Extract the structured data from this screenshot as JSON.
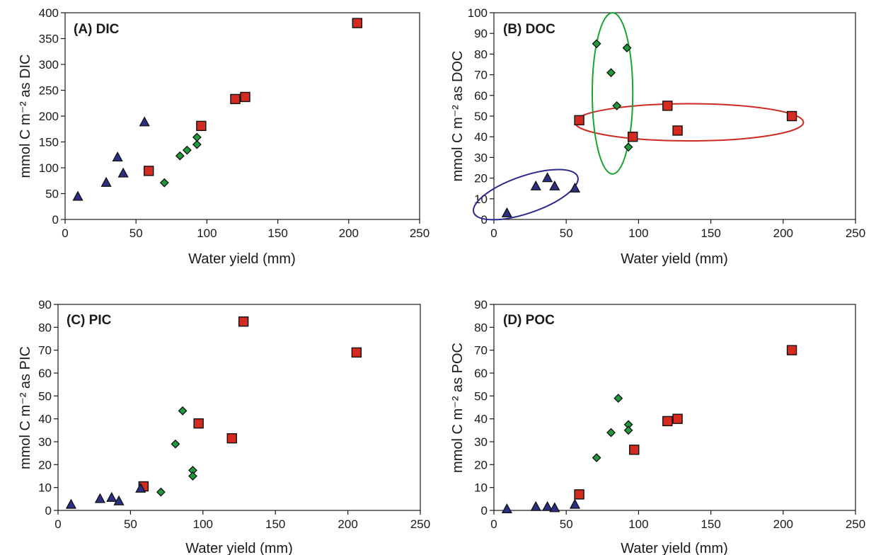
{
  "colors": {
    "wet": "#d42a1f",
    "intermediate": "#1d9a3a",
    "dry": "#2b2f85",
    "ellipse_red": "#cc2a1f",
    "ellipse_green": "#19a236",
    "ellipse_blue": "#2c2a8c"
  },
  "chart_data": [
    {
      "type": "scatter",
      "panel_label": "(A) DIC",
      "xlabel": "Water yield (mm)",
      "ylabel": "mmol C m⁻² as DIC",
      "xlim": [
        0,
        250
      ],
      "ylim": [
        0,
        400
      ],
      "xticks": [
        0,
        50,
        100,
        150,
        200,
        250
      ],
      "yticks": [
        0,
        50,
        100,
        150,
        200,
        250,
        300,
        350,
        400
      ],
      "grid": false,
      "series": [
        {
          "marker": "square",
          "color": "wet",
          "points": [
            [
              59,
              94
            ],
            [
              96,
              181
            ],
            [
              120,
              233
            ],
            [
              127,
              237
            ],
            [
              206,
              380
            ]
          ]
        },
        {
          "marker": "diamond",
          "color": "intermediate",
          "points": [
            [
              70,
              71
            ],
            [
              81,
              123
            ],
            [
              86,
              134
            ],
            [
              93,
              145
            ],
            [
              93,
              159
            ]
          ]
        },
        {
          "marker": "triangle",
          "color": "dry",
          "points": [
            [
              9,
              44
            ],
            [
              29,
              71
            ],
            [
              37,
              120
            ],
            [
              41,
              89
            ],
            [
              56,
              188
            ]
          ]
        }
      ]
    },
    {
      "type": "scatter",
      "panel_label": "(B) DOC",
      "xlabel": "Water yield (mm)",
      "ylabel": "mmol C m⁻² as DOC",
      "xlim": [
        0,
        250
      ],
      "ylim": [
        0,
        100
      ],
      "xticks": [
        0,
        50,
        100,
        150,
        200,
        250
      ],
      "yticks": [
        0,
        10,
        20,
        30,
        40,
        50,
        60,
        70,
        80,
        90,
        100
      ],
      "grid": false,
      "series": [
        {
          "marker": "square",
          "color": "wet",
          "points": [
            [
              59,
              48
            ],
            [
              96,
              40
            ],
            [
              120,
              55
            ],
            [
              127,
              43
            ],
            [
              206,
              50
            ]
          ]
        },
        {
          "marker": "diamond",
          "color": "intermediate",
          "points": [
            [
              71,
              85
            ],
            [
              81,
              71
            ],
            [
              85,
              55
            ],
            [
              92,
              83
            ],
            [
              93,
              35
            ]
          ]
        },
        {
          "marker": "triangle",
          "color": "dry",
          "points": [
            [
              9,
              3
            ],
            [
              29,
              16
            ],
            [
              37,
              20
            ],
            [
              42,
              16
            ],
            [
              56,
              15
            ]
          ]
        }
      ],
      "ellipses": [
        {
          "color": "ellipse_red",
          "cx": 135,
          "cy": 47,
          "rx": 79,
          "ry": 9
        },
        {
          "color": "ellipse_green",
          "cx": 82,
          "cy": 61,
          "rx": 14,
          "ry": 39
        },
        {
          "color": "ellipse_blue",
          "cx": 22,
          "cy": 12,
          "rx": 38,
          "ry": 9,
          "angle": -19
        }
      ]
    },
    {
      "type": "scatter",
      "panel_label": "(C) PIC",
      "xlabel": "Water yield (mm)",
      "ylabel": "mmol C m⁻² as PIC",
      "xlim": [
        0,
        250
      ],
      "ylim": [
        0,
        90
      ],
      "xticks": [
        0,
        50,
        100,
        150,
        200,
        250
      ],
      "yticks": [
        0,
        10,
        20,
        30,
        40,
        50,
        60,
        70,
        80,
        90
      ],
      "grid": false,
      "series": [
        {
          "marker": "square",
          "color": "wet",
          "points": [
            [
              59,
              10.5
            ],
            [
              97,
              38
            ],
            [
              120,
              31.5
            ],
            [
              128,
              82.5
            ],
            [
              206,
              69
            ]
          ]
        },
        {
          "marker": "diamond",
          "color": "intermediate",
          "points": [
            [
              71,
              8
            ],
            [
              81,
              29
            ],
            [
              86,
              43.5
            ],
            [
              93,
              17.5
            ],
            [
              93,
              15
            ]
          ]
        },
        {
          "marker": "triangle",
          "color": "dry",
          "points": [
            [
              9,
              2.5
            ],
            [
              29,
              5
            ],
            [
              37,
              5.5
            ],
            [
              42,
              4
            ],
            [
              57,
              9.5
            ]
          ]
        }
      ]
    },
    {
      "type": "scatter",
      "panel_label": "(D) POC",
      "xlabel": "Water yield (mm)",
      "ylabel": "mmol C m⁻² as POC",
      "xlim": [
        0,
        250
      ],
      "ylim": [
        0,
        90
      ],
      "xticks": [
        0,
        50,
        100,
        150,
        200,
        250
      ],
      "yticks": [
        0,
        10,
        20,
        30,
        40,
        50,
        60,
        70,
        80,
        90
      ],
      "grid": false,
      "series": [
        {
          "marker": "square",
          "color": "wet",
          "points": [
            [
              59,
              7
            ],
            [
              97,
              26.5
            ],
            [
              120,
              39
            ],
            [
              127,
              40
            ],
            [
              206,
              70
            ]
          ]
        },
        {
          "marker": "diamond",
          "color": "intermediate",
          "points": [
            [
              71,
              23
            ],
            [
              81,
              34
            ],
            [
              86,
              49
            ],
            [
              93,
              37.5
            ],
            [
              93,
              35
            ]
          ]
        },
        {
          "marker": "triangle",
          "color": "dry",
          "points": [
            [
              9,
              0.5
            ],
            [
              29,
              1.5
            ],
            [
              37,
              1.5
            ],
            [
              42,
              1
            ],
            [
              56,
              2.5
            ]
          ]
        }
      ]
    }
  ]
}
